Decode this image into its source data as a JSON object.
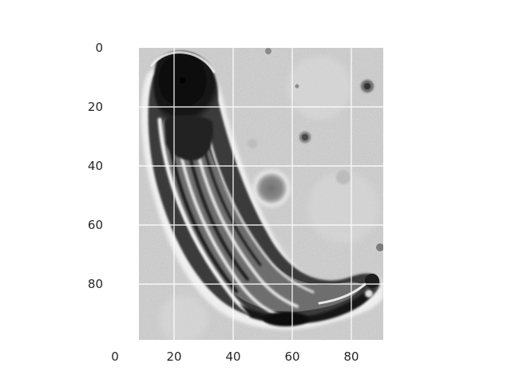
{
  "figure": {
    "kind": "image-with-axes",
    "grid": true,
    "grid_color": "#ffffff",
    "tick_color": "#262626",
    "background": "#ffffff",
    "colormap": "grayscale"
  },
  "axes": {
    "x_extent": [
      0,
      90
    ],
    "y_extent": [
      0,
      100
    ],
    "y_inverted": true,
    "x_ticks": [
      0,
      20,
      40,
      60,
      80
    ],
    "y_ticks": [
      0,
      20,
      40,
      60,
      80
    ],
    "x_tick_labels": [
      "0",
      "20",
      "40",
      "60",
      "80"
    ],
    "y_tick_labels": [
      "0",
      "20",
      "40",
      "60",
      "80"
    ]
  },
  "image": {
    "subject": "grayscale micrograph of an elongated curved organism",
    "visible_x_range": [
      8,
      90
    ]
  }
}
